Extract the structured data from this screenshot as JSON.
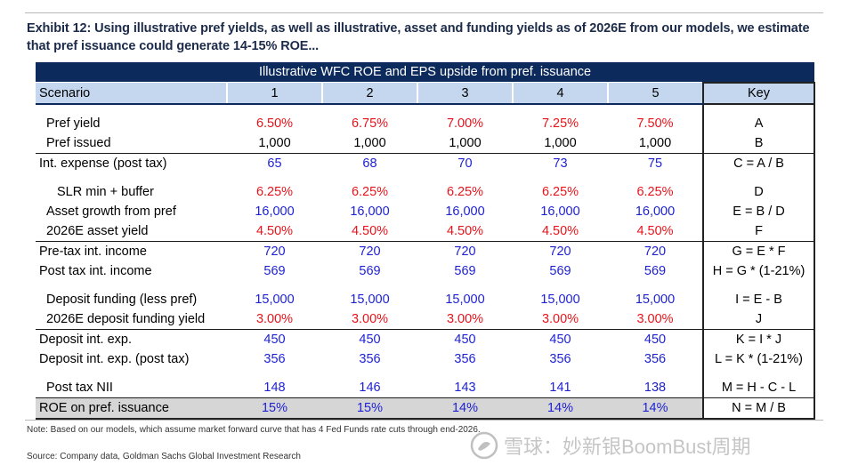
{
  "title": "Exhibit 12: Using illustrative pref yields, as well as illustrative, asset and funding yields as of 2026E from our models, we estimate that pref issuance could generate 14-15% ROE...",
  "table": {
    "banner": "Illustrative WFC ROE and EPS upside from pref. issuance",
    "header": {
      "scenario": "Scenario",
      "cols": [
        "1",
        "2",
        "3",
        "4",
        "5"
      ],
      "key": "Key"
    },
    "rows": [
      {
        "label": "Pref yield",
        "values": [
          "6.50%",
          "6.75%",
          "7.00%",
          "7.25%",
          "7.50%"
        ],
        "key": "A",
        "color": "red"
      },
      {
        "label": "Pref issued",
        "values": [
          "1,000",
          "1,000",
          "1,000",
          "1,000",
          "1,000"
        ],
        "key": "B",
        "color": "black"
      },
      {
        "label": "Int. expense (post tax)",
        "values": [
          "65",
          "68",
          "70",
          "73",
          "75"
        ],
        "key": "C = A / B",
        "color": "blue"
      },
      {
        "label": "SLR min + buffer",
        "values": [
          "6.25%",
          "6.25%",
          "6.25%",
          "6.25%",
          "6.25%"
        ],
        "key": "D",
        "color": "red"
      },
      {
        "label": "Asset growth from pref",
        "values": [
          "16,000",
          "16,000",
          "16,000",
          "16,000",
          "16,000"
        ],
        "key": "E = B / D",
        "color": "blue"
      },
      {
        "label": "2026E asset yield",
        "values": [
          "4.50%",
          "4.50%",
          "4.50%",
          "4.50%",
          "4.50%"
        ],
        "key": "F",
        "color": "red"
      },
      {
        "label": "Pre-tax int. income",
        "values": [
          "720",
          "720",
          "720",
          "720",
          "720"
        ],
        "key": "G = E * F",
        "color": "blue"
      },
      {
        "label": "Post tax int. income",
        "values": [
          "569",
          "569",
          "569",
          "569",
          "569"
        ],
        "key": "H = G * (1-21%)",
        "color": "blue"
      },
      {
        "label": "Deposit funding (less pref)",
        "values": [
          "15,000",
          "15,000",
          "15,000",
          "15,000",
          "15,000"
        ],
        "key": "I = E - B",
        "color": "blue"
      },
      {
        "label": "2026E deposit funding yield",
        "values": [
          "3.00%",
          "3.00%",
          "3.00%",
          "3.00%",
          "3.00%"
        ],
        "key": "J",
        "color": "red"
      },
      {
        "label": "Deposit int. exp.",
        "values": [
          "450",
          "450",
          "450",
          "450",
          "450"
        ],
        "key": "K = I * J",
        "color": "blue"
      },
      {
        "label": "Deposit int. exp. (post tax)",
        "values": [
          "356",
          "356",
          "356",
          "356",
          "356"
        ],
        "key": "L = K * (1-21%)",
        "color": "blue"
      },
      {
        "label": "Post tax NII",
        "values": [
          "148",
          "146",
          "143",
          "141",
          "138"
        ],
        "key": "M = H - C - L",
        "color": "blue"
      },
      {
        "label": "ROE on pref. issuance",
        "values": [
          "15%",
          "15%",
          "14%",
          "14%",
          "14%"
        ],
        "key": "N = M / B",
        "color": "blue"
      }
    ]
  },
  "note": "Note: Based on our models, which assume market forward curve that has 4 Fed Funds rate cuts through end-2026.",
  "source": "Source: Company data, Goldman Sachs Global Investment Research",
  "watermark": "雪球：妙新银BoomBust周期",
  "colors": {
    "navy": "#0c2a5c",
    "header_fill": "#c5d7ef",
    "red": "#e8141b",
    "blue": "#1f22d4",
    "roe_fill": "#d6d6d6"
  }
}
